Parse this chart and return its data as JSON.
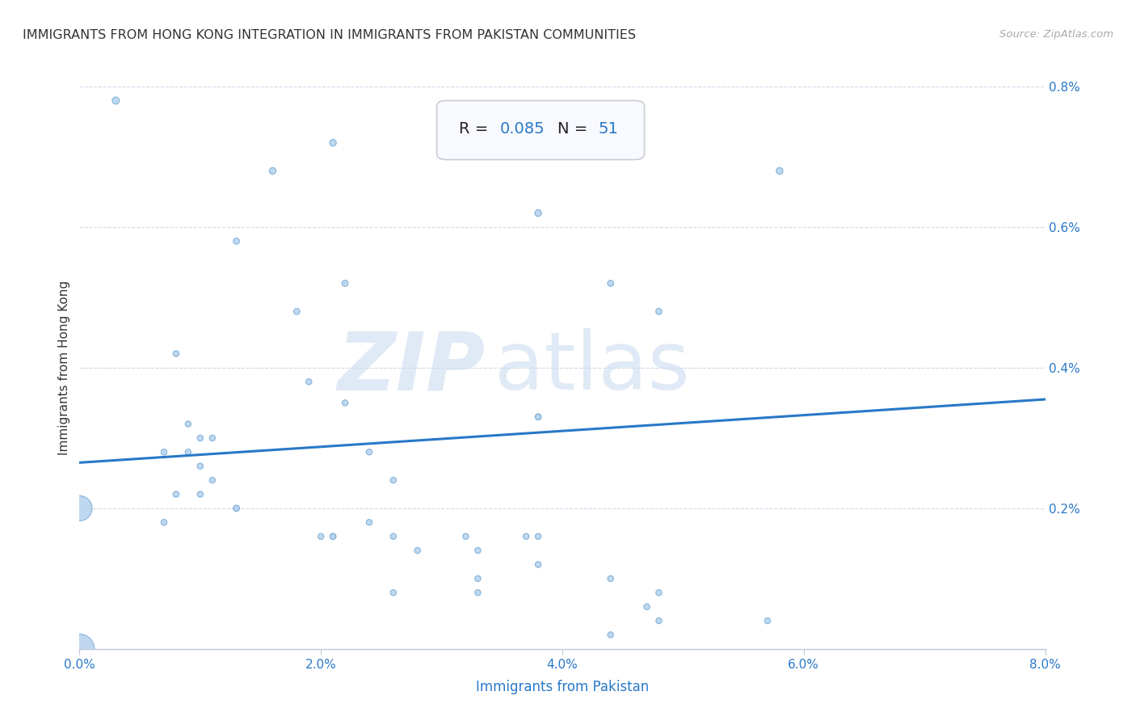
{
  "title": "IMMIGRANTS FROM HONG KONG INTEGRATION IN IMMIGRANTS FROM PAKISTAN COMMUNITIES",
  "source": "Source: ZipAtlas.com",
  "xlabel": "Immigrants from Pakistan",
  "ylabel": "Immigrants from Hong Kong",
  "watermark_zip": "ZIP",
  "watermark_atlas": "atlas",
  "R": 0.085,
  "N": 51,
  "xlim": [
    0.0,
    0.08
  ],
  "ylim": [
    0.0,
    0.008
  ],
  "xticks": [
    0.0,
    0.02,
    0.04,
    0.06,
    0.08
  ],
  "xtick_labels": [
    "0.0%",
    "2.0%",
    "4.0%",
    "6.0%",
    "8.0%"
  ],
  "yticks": [
    0.0,
    0.002,
    0.004,
    0.006,
    0.008
  ],
  "ytick_labels": [
    "",
    "0.2%",
    "0.4%",
    "0.6%",
    "0.8%"
  ],
  "scatter_color": "#b8d4ee",
  "scatter_edge_color": "#7aaed8",
  "line_color": "#2878c8",
  "background_color": "#ffffff",
  "grid_color": "#d0d8e8",
  "annotation_box_color": "#f8faff",
  "annotation_border_color": "#c8ccd8",
  "R_color": "#2878c8",
  "title_color": "#333333",
  "source_color": "#aaaaaa",
  "points": [
    [
      0.003,
      0.0078
    ],
    [
      0.021,
      0.0072
    ],
    [
      0.016,
      0.0068
    ],
    [
      0.058,
      0.0068
    ],
    [
      0.038,
      0.0062
    ],
    [
      0.013,
      0.0058
    ],
    [
      0.022,
      0.0052
    ],
    [
      0.044,
      0.0052
    ],
    [
      0.018,
      0.0048
    ],
    [
      0.048,
      0.0048
    ],
    [
      0.008,
      0.0042
    ],
    [
      0.019,
      0.0038
    ],
    [
      0.022,
      0.0035
    ],
    [
      0.038,
      0.0033
    ],
    [
      0.038,
      0.0033
    ],
    [
      0.009,
      0.0032
    ],
    [
      0.01,
      0.003
    ],
    [
      0.011,
      0.003
    ],
    [
      0.007,
      0.0028
    ],
    [
      0.009,
      0.0028
    ],
    [
      0.024,
      0.0028
    ],
    [
      0.01,
      0.0026
    ],
    [
      0.011,
      0.0024
    ],
    [
      0.026,
      0.0024
    ],
    [
      0.008,
      0.0022
    ],
    [
      0.01,
      0.0022
    ],
    [
      0.013,
      0.002
    ],
    [
      0.013,
      0.002
    ],
    [
      0.0,
      0.002
    ],
    [
      0.007,
      0.0018
    ],
    [
      0.024,
      0.0018
    ],
    [
      0.02,
      0.0016
    ],
    [
      0.021,
      0.0016
    ],
    [
      0.021,
      0.0016
    ],
    [
      0.026,
      0.0016
    ],
    [
      0.032,
      0.0016
    ],
    [
      0.037,
      0.0016
    ],
    [
      0.038,
      0.0016
    ],
    [
      0.028,
      0.0014
    ],
    [
      0.033,
      0.0014
    ],
    [
      0.038,
      0.0012
    ],
    [
      0.033,
      0.001
    ],
    [
      0.044,
      0.001
    ],
    [
      0.026,
      0.0008
    ],
    [
      0.033,
      0.0008
    ],
    [
      0.048,
      0.0008
    ],
    [
      0.047,
      0.0006
    ],
    [
      0.048,
      0.0004
    ],
    [
      0.057,
      0.0004
    ],
    [
      0.044,
      0.0002
    ],
    [
      0.0,
      0.0
    ]
  ],
  "bubble_sizes": [
    40,
    35,
    35,
    35,
    35,
    30,
    30,
    30,
    30,
    30,
    28,
    28,
    28,
    28,
    28,
    28,
    28,
    28,
    28,
    28,
    28,
    28,
    28,
    28,
    28,
    28,
    28,
    28,
    500,
    28,
    28,
    28,
    28,
    28,
    28,
    28,
    28,
    28,
    28,
    28,
    28,
    28,
    28,
    28,
    28,
    28,
    28,
    28,
    28,
    28,
    700
  ],
  "line_x": [
    0.0,
    0.08
  ],
  "line_y": [
    0.00265,
    0.00355
  ]
}
